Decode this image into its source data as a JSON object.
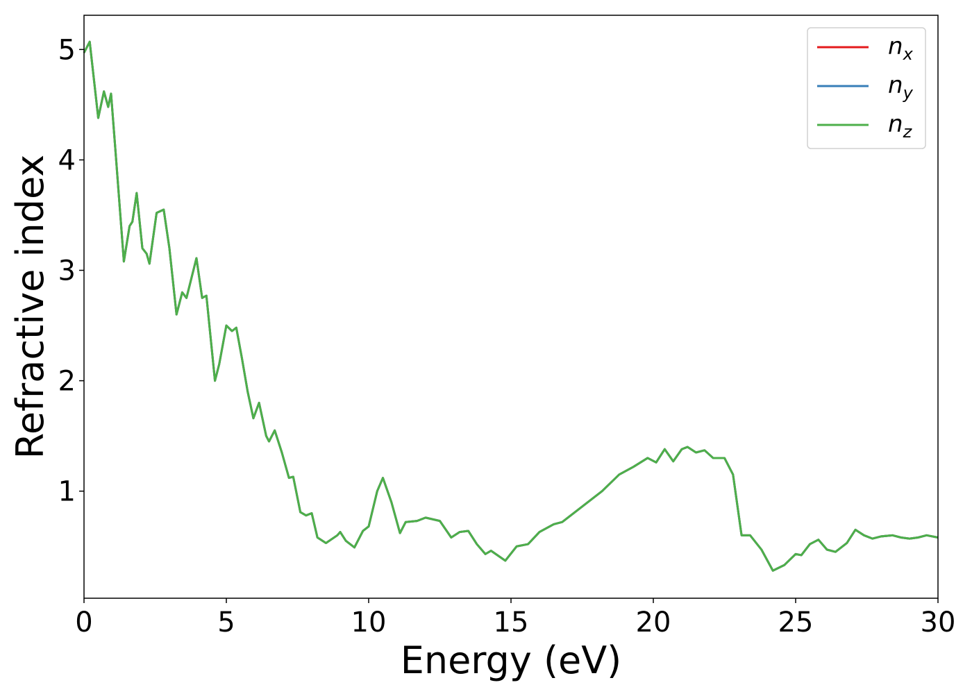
{
  "chart_data": {
    "type": "line",
    "x_label": "Energy (eV)",
    "y_label": "Refractive index",
    "xlim": [
      0,
      30
    ],
    "ylim": [
      0.03,
      5.31
    ],
    "xticks": [
      0,
      5,
      10,
      15,
      20,
      25,
      30
    ],
    "yticks": [
      1,
      2,
      3,
      4,
      5
    ],
    "legend": "upper right",
    "grid": false,
    "x": [
      0,
      0.2,
      0.5,
      0.7,
      0.85,
      0.95,
      1.1,
      1.4,
      1.6,
      1.7,
      1.85,
      2.05,
      2.2,
      2.3,
      2.55,
      2.8,
      3.0,
      3.25,
      3.45,
      3.6,
      3.95,
      4.15,
      4.3,
      4.6,
      4.75,
      5.0,
      5.2,
      5.35,
      5.55,
      5.75,
      5.95,
      6.15,
      6.4,
      6.5,
      6.7,
      6.95,
      7.2,
      7.35,
      7.6,
      7.8,
      8.0,
      8.2,
      8.5,
      8.9,
      9.0,
      9.2,
      9.5,
      9.8,
      10.0,
      10.3,
      10.5,
      10.8,
      11.1,
      11.3,
      11.7,
      12.0,
      12.5,
      12.9,
      13.2,
      13.5,
      13.8,
      14.1,
      14.3,
      14.8,
      15.2,
      15.6,
      16.0,
      16.5,
      16.8,
      17.5,
      18.2,
      18.8,
      19.3,
      19.8,
      20.1,
      20.4,
      20.7,
      21.0,
      21.2,
      21.5,
      21.8,
      22.1,
      22.5,
      22.8,
      23.1,
      23.4,
      23.8,
      24.2,
      24.6,
      25.0,
      25.2,
      25.5,
      25.8,
      26.1,
      26.4,
      26.8,
      27.1,
      27.4,
      27.7,
      28.0,
      28.4,
      28.7,
      29.0,
      29.3,
      29.6,
      30.0
    ],
    "series": [
      {
        "name": "nx",
        "color": "#e41a1c",
        "values": [
          4.97,
          5.07,
          4.38,
          4.62,
          4.48,
          4.6,
          4.1,
          3.08,
          3.4,
          3.44,
          3.7,
          3.2,
          3.15,
          3.06,
          3.52,
          3.55,
          3.2,
          2.6,
          2.8,
          2.75,
          3.11,
          2.75,
          2.77,
          2.0,
          2.15,
          2.5,
          2.45,
          2.48,
          2.2,
          1.9,
          1.66,
          1.8,
          1.5,
          1.45,
          1.55,
          1.35,
          1.12,
          1.13,
          0.81,
          0.78,
          0.8,
          0.58,
          0.53,
          0.6,
          0.63,
          0.55,
          0.49,
          0.64,
          0.68,
          1.0,
          1.12,
          0.9,
          0.62,
          0.72,
          0.73,
          0.76,
          0.73,
          0.58,
          0.63,
          0.64,
          0.52,
          0.43,
          0.46,
          0.37,
          0.5,
          0.52,
          0.63,
          0.7,
          0.72,
          0.86,
          1.0,
          1.15,
          1.22,
          1.3,
          1.26,
          1.38,
          1.27,
          1.38,
          1.4,
          1.35,
          1.37,
          1.3,
          1.3,
          1.15,
          0.6,
          0.6,
          0.47,
          0.28,
          0.33,
          0.43,
          0.42,
          0.52,
          0.56,
          0.47,
          0.45,
          0.53,
          0.65,
          0.6,
          0.57,
          0.59,
          0.6,
          0.58,
          0.57,
          0.58,
          0.6,
          0.58
        ]
      },
      {
        "name": "ny",
        "color": "#377eb8",
        "values": [
          4.97,
          5.07,
          4.38,
          4.62,
          4.48,
          4.6,
          4.1,
          3.08,
          3.4,
          3.44,
          3.7,
          3.2,
          3.15,
          3.06,
          3.52,
          3.55,
          3.2,
          2.6,
          2.8,
          2.75,
          3.11,
          2.75,
          2.77,
          2.0,
          2.15,
          2.5,
          2.45,
          2.48,
          2.2,
          1.9,
          1.66,
          1.8,
          1.5,
          1.45,
          1.55,
          1.35,
          1.12,
          1.13,
          0.81,
          0.78,
          0.8,
          0.58,
          0.53,
          0.6,
          0.63,
          0.55,
          0.49,
          0.64,
          0.68,
          1.0,
          1.12,
          0.9,
          0.62,
          0.72,
          0.73,
          0.76,
          0.73,
          0.58,
          0.63,
          0.64,
          0.52,
          0.43,
          0.46,
          0.37,
          0.5,
          0.52,
          0.63,
          0.7,
          0.72,
          0.86,
          1.0,
          1.15,
          1.22,
          1.3,
          1.26,
          1.38,
          1.27,
          1.38,
          1.4,
          1.35,
          1.37,
          1.3,
          1.3,
          1.15,
          0.6,
          0.6,
          0.47,
          0.28,
          0.33,
          0.43,
          0.42,
          0.52,
          0.56,
          0.47,
          0.45,
          0.53,
          0.65,
          0.6,
          0.57,
          0.59,
          0.6,
          0.58,
          0.57,
          0.58,
          0.6,
          0.58
        ]
      },
      {
        "name": "nz",
        "color": "#4daf4a",
        "values": [
          4.97,
          5.07,
          4.38,
          4.62,
          4.48,
          4.6,
          4.1,
          3.08,
          3.4,
          3.44,
          3.7,
          3.2,
          3.15,
          3.06,
          3.52,
          3.55,
          3.2,
          2.6,
          2.8,
          2.75,
          3.11,
          2.75,
          2.77,
          2.0,
          2.15,
          2.5,
          2.45,
          2.48,
          2.2,
          1.9,
          1.66,
          1.8,
          1.5,
          1.45,
          1.55,
          1.35,
          1.12,
          1.13,
          0.81,
          0.78,
          0.8,
          0.58,
          0.53,
          0.6,
          0.63,
          0.55,
          0.49,
          0.64,
          0.68,
          1.0,
          1.12,
          0.9,
          0.62,
          0.72,
          0.73,
          0.76,
          0.73,
          0.58,
          0.63,
          0.64,
          0.52,
          0.43,
          0.46,
          0.37,
          0.5,
          0.52,
          0.63,
          0.7,
          0.72,
          0.86,
          1.0,
          1.15,
          1.22,
          1.3,
          1.26,
          1.38,
          1.27,
          1.38,
          1.4,
          1.35,
          1.37,
          1.3,
          1.3,
          1.15,
          0.6,
          0.6,
          0.47,
          0.28,
          0.33,
          0.43,
          0.42,
          0.52,
          0.56,
          0.47,
          0.45,
          0.53,
          0.65,
          0.6,
          0.57,
          0.59,
          0.6,
          0.58,
          0.57,
          0.58,
          0.6,
          0.58
        ]
      }
    ]
  }
}
